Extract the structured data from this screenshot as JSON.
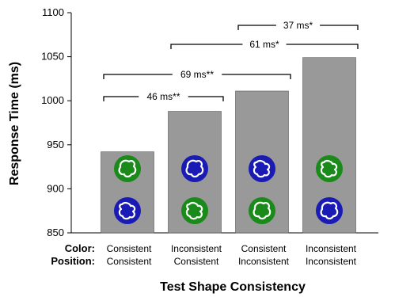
{
  "chart_data": {
    "type": "bar",
    "ylabel": "Response Time (ms)",
    "xlabel": "Test Shape Consistency",
    "ylim": [
      850,
      1100
    ],
    "yticks": [
      850,
      900,
      950,
      1000,
      1050,
      1100
    ],
    "grid": false,
    "row_labels": {
      "color": "Color:",
      "position": "Position:"
    },
    "categories": [
      {
        "color": "Consistent",
        "position": "Consistent"
      },
      {
        "color": "Inconsistent",
        "position": "Consistent"
      },
      {
        "color": "Consistent",
        "position": "Inconsistent"
      },
      {
        "color": "Inconsistent",
        "position": "Inconsistent"
      }
    ],
    "values": [
      942,
      988,
      1011,
      1049
    ],
    "bar_color": "#999999",
    "annotations": [
      {
        "label": "46 ms**",
        "from": 0,
        "to": 1
      },
      {
        "label": "69 ms**",
        "from": 0,
        "to": 2
      },
      {
        "label": "61 ms*",
        "from": 1,
        "to": 3
      },
      {
        "label": "37 ms*",
        "from": 2,
        "to": 3
      }
    ],
    "icons": [
      {
        "top": {
          "color": "#1a8a1a",
          "shape": "blob-a"
        },
        "bottom": {
          "color": "#1a1ab4",
          "shape": "blob-b"
        }
      },
      {
        "top": {
          "color": "#1a1ab4",
          "shape": "blob-a"
        },
        "bottom": {
          "color": "#1a8a1a",
          "shape": "blob-b"
        }
      },
      {
        "top": {
          "color": "#1a1ab4",
          "shape": "blob-b"
        },
        "bottom": {
          "color": "#1a8a1a",
          "shape": "blob-a"
        }
      },
      {
        "top": {
          "color": "#1a8a1a",
          "shape": "blob-b"
        },
        "bottom": {
          "color": "#1a1ab4",
          "shape": "blob-a"
        }
      }
    ]
  }
}
